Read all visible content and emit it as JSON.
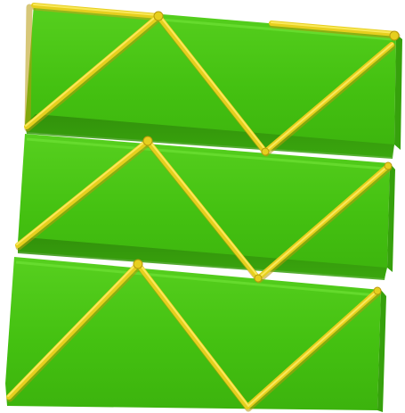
{
  "colors": {
    "background": "#ffffff",
    "panel_fill": "#45c212",
    "panel_highlight": "#5bd424",
    "panel_shadow": "#2f8d0b",
    "panel_edge": "#3aa80f",
    "strut": "#e6cf1e",
    "strut_highlight": "#fff06a",
    "strut_shadow": "#b89a0c"
  },
  "scene": {
    "panels": [
      {
        "label": ""
      },
      {
        "label": ""
      },
      {
        "label": ""
      }
    ]
  }
}
